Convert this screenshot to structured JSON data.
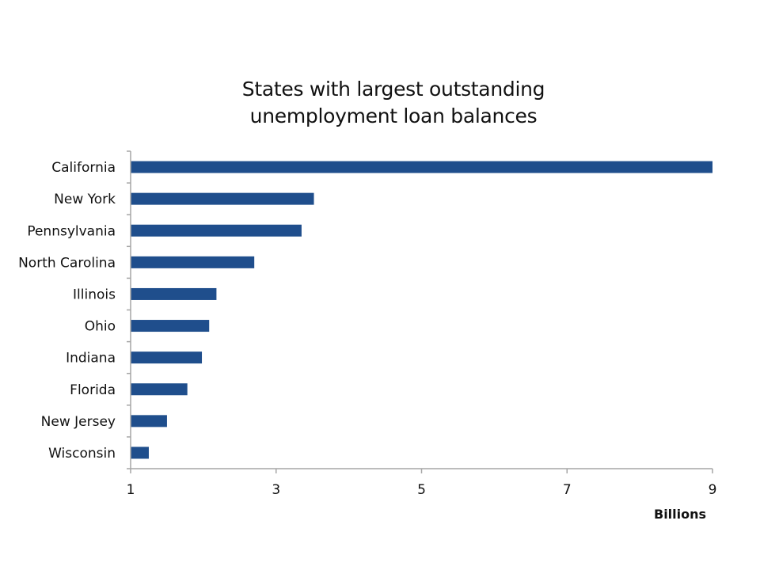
{
  "chart_data": {
    "type": "bar",
    "orientation": "horizontal",
    "title": [
      "States with largest outstanding",
      "unemployment loan balances"
    ],
    "categories": [
      "California",
      "New York",
      "Pennsylvania",
      "North Carolina",
      "Illinois",
      "Ohio",
      "Indiana",
      "Florida",
      "New Jersey",
      "Wisconsin"
    ],
    "values": [
      9.0,
      3.52,
      3.35,
      2.7,
      2.18,
      2.08,
      1.98,
      1.78,
      1.5,
      1.25
    ],
    "xlim": [
      1,
      9
    ],
    "xticks": [
      "1",
      "3",
      "5",
      "7",
      "9"
    ],
    "xlabel": "Billions",
    "ylabel": "",
    "grid": false,
    "bar_color": "#1f4e8c",
    "axis_color": "#a6a6a6"
  }
}
